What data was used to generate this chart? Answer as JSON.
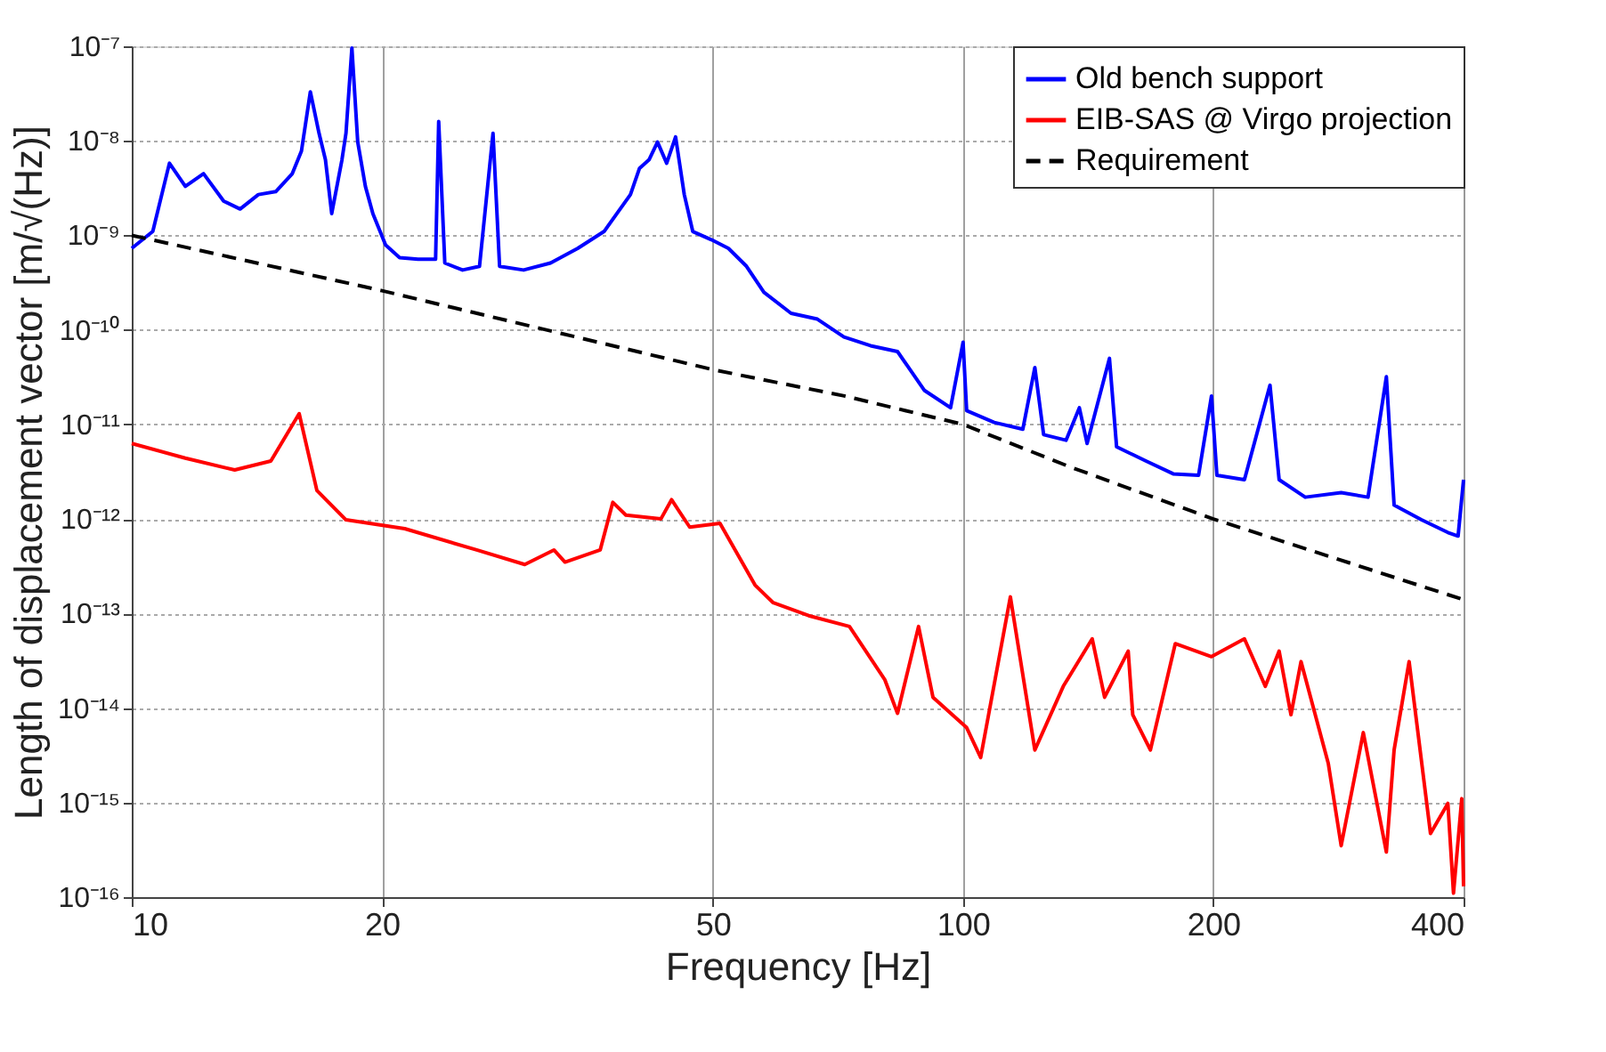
{
  "chart_data": {
    "type": "line",
    "xlabel": "Frequency [Hz]",
    "ylabel": "Length of displacement vector [m/√(Hz)]",
    "log": "xy",
    "grid": true,
    "legend": "top right",
    "xlim": [
      10,
      400
    ],
    "xticks": [
      10,
      20,
      50,
      100,
      200,
      400
    ],
    "ylim": [
      1e-16,
      1e-07
    ],
    "yticks": [
      {
        "value": 1e-16,
        "label": "10⁻¹⁶"
      },
      {
        "value": 1e-15,
        "label": "10⁻¹⁵"
      },
      {
        "value": 1e-14,
        "label": "10⁻¹⁴"
      },
      {
        "value": 1e-13,
        "label": "10⁻¹³"
      },
      {
        "value": 1e-12,
        "label": "10⁻¹²"
      },
      {
        "value": 1e-11,
        "label": "10⁻¹¹"
      },
      {
        "value": 1e-10,
        "label": "10⁻¹⁰"
      },
      {
        "value": 1e-09,
        "label": "10⁻⁹"
      },
      {
        "value": 1e-08,
        "label": "10⁻⁸"
      },
      {
        "value": 1e-07,
        "label": "10⁻⁷"
      }
    ],
    "series": [
      {
        "name": "Old bench support",
        "color": "#0000ff",
        "line_style": "solid",
        "x": [
          10,
          10.6,
          11.1,
          11.6,
          12.2,
          12.9,
          13.5,
          14.2,
          14.9,
          15.6,
          16.0,
          16.4,
          16.8,
          17.1,
          17.4,
          17.9,
          18.1,
          18.4,
          18.7,
          19.1,
          19.5,
          20.2,
          21.0,
          22.1,
          23.2,
          23.4,
          23.8,
          25.0,
          26.2,
          27.2,
          27.7,
          29.6,
          31.9,
          34.4,
          37.0,
          39.8,
          40.8,
          41.9,
          42.9,
          44.0,
          45.1,
          46.2,
          47.3,
          49.8,
          52.2,
          54.9,
          57.6,
          62.1,
          66.8,
          71.9,
          77.4,
          83.4,
          89.8,
          96.6,
          100,
          101,
          109,
          118,
          122,
          125,
          133,
          138,
          141,
          150,
          153,
          166,
          179,
          192,
          199,
          202,
          218,
          234,
          240,
          258,
          285,
          307,
          323,
          330,
          356,
          383,
          394,
          400
        ],
        "values": [
          7.3e-10,
          1.1e-09,
          5.8e-09,
          3.3e-09,
          4.5e-09,
          2.3e-09,
          1.9e-09,
          2.7e-09,
          2.9e-09,
          4.5e-09,
          7.8e-09,
          3.3e-08,
          1.2e-08,
          6.3e-09,
          1.7e-09,
          6.3e-09,
          1.2e-08,
          9.6e-08,
          9.7e-09,
          3.3e-09,
          1.7e-09,
          7.9e-10,
          5.8e-10,
          5.6e-10,
          5.6e-10,
          1.6e-08,
          5.1e-10,
          4.3e-10,
          4.7e-10,
          1.2e-08,
          4.7e-10,
          4.3e-10,
          5.1e-10,
          7.3e-10,
          1.1e-09,
          2.7e-09,
          5.1e-09,
          6.3e-09,
          9.7e-09,
          5.8e-09,
          1.1e-08,
          2.7e-09,
          1.1e-09,
          9e-10,
          7.3e-10,
          4.7e-10,
          2.5e-10,
          1.5e-10,
          1.3e-10,
          8.4e-11,
          6.8e-11,
          5.9e-11,
          2.3e-11,
          1.5e-11,
          7.4e-11,
          1.4e-11,
          1.05e-11,
          8.9e-12,
          4e-11,
          7.8e-12,
          6.8e-12,
          1.5e-11,
          6.3e-12,
          5e-11,
          5.8e-12,
          4.1e-12,
          3e-12,
          2.9e-12,
          2e-11,
          2.9e-12,
          2.6e-12,
          2.6e-11,
          2.6e-12,
          1.7e-12,
          1.9e-12,
          1.7e-12,
          3.2e-11,
          1.4e-12,
          9.8e-13,
          7.2e-13,
          6.6e-13,
          2.6e-12
        ]
      },
      {
        "name": "EIB-SAS @ Virgo projection",
        "color": "#ff0000",
        "line_style": "solid",
        "x": [
          10,
          11.6,
          13.3,
          14.7,
          15.9,
          16.7,
          18.1,
          21.3,
          26.0,
          29.7,
          32.2,
          33.2,
          36.6,
          37.9,
          39.3,
          43.3,
          44.6,
          46.9,
          51.0,
          56.2,
          59.1,
          65.2,
          73.0,
          80.5,
          83.4,
          88.4,
          92.0,
          101,
          105,
          114,
          122,
          132,
          143,
          148,
          158,
          160,
          168,
          180,
          199,
          218,
          231,
          240,
          248,
          255,
          275,
          285,
          303,
          323,
          330,
          344,
          365,
          383,
          389,
          398,
          400
        ],
        "values": [
          6.3e-12,
          4.4e-12,
          3.3e-12,
          4.1e-12,
          1.3e-11,
          2e-12,
          9.8e-13,
          7.9e-13,
          4.7e-13,
          3.3e-13,
          4.7e-13,
          3.5e-13,
          4.7e-13,
          1.5e-12,
          1.1e-12,
          1e-12,
          1.6e-12,
          8.2e-13,
          9e-13,
          2e-13,
          1.3e-13,
          9.5e-14,
          7.3e-14,
          2e-14,
          8.8e-15,
          7.3e-14,
          1.3e-14,
          6.2e-15,
          3e-15,
          1.5e-13,
          3.6e-15,
          1.7e-14,
          5.4e-14,
          1.3e-14,
          4e-14,
          8.5e-15,
          3.6e-15,
          4.8e-14,
          3.5e-14,
          5.4e-14,
          1.7e-14,
          4e-14,
          8.5e-15,
          3.1e-14,
          2.6e-15,
          3.5e-16,
          5.5e-15,
          3e-16,
          3.6e-15,
          3.1e-14,
          4.7e-16,
          9.8e-16,
          1.1e-16,
          1.1e-15,
          1.3e-16
        ]
      },
      {
        "name": "Requirement",
        "color": "#000000",
        "line_style": "dashed",
        "x": [
          10,
          20,
          50,
          72,
          100,
          134,
          200,
          400
        ],
        "values": [
          1e-09,
          2.6e-10,
          3.8e-11,
          2e-11,
          1e-11,
          3.6e-12,
          1e-12,
          1.4e-13
        ]
      }
    ]
  }
}
